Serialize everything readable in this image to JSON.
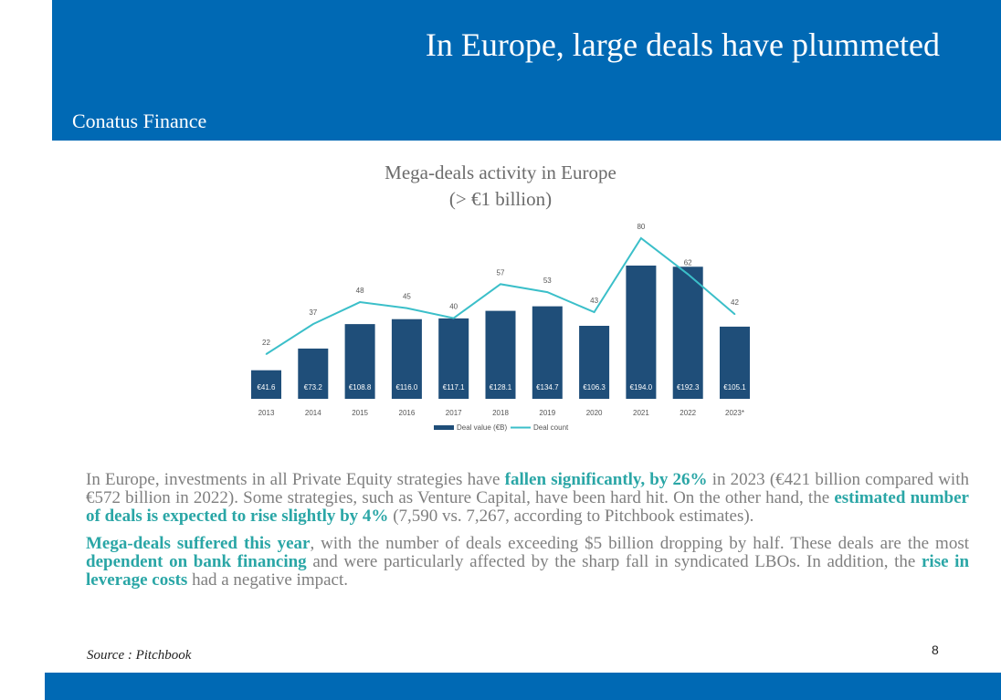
{
  "header": {
    "title": "In Europe, large deals have plummeted",
    "brand": "Conatus Finance"
  },
  "colors": {
    "brand_blue": "#0069b4",
    "bar": "#1f4e79",
    "line": "#3bbfc9",
    "highlight": "#2aa6a6"
  },
  "chart_data": {
    "type": "bar",
    "title": "Mega-deals activity in Europe",
    "subtitle": "(> €1 billion)",
    "categories": [
      "2013",
      "2014",
      "2015",
      "2016",
      "2017",
      "2018",
      "2019",
      "2020",
      "2021",
      "2022",
      "2023*"
    ],
    "series": [
      {
        "name": "Deal value (€B)",
        "type": "bar",
        "values": [
          41.6,
          73.2,
          108.8,
          116.0,
          117.1,
          128.1,
          134.7,
          106.3,
          194.0,
          192.3,
          105.1
        ],
        "labels": [
          "€41.6",
          "€73.2",
          "€108.8",
          "€116.0",
          "€117.1",
          "€128.1",
          "€134.7",
          "€106.3",
          "€194.0",
          "€192.3",
          "€105.1"
        ]
      },
      {
        "name": "Deal count",
        "type": "line",
        "values": [
          22,
          37,
          48,
          45,
          40,
          57,
          53,
          43,
          80,
          62,
          42
        ]
      }
    ],
    "legend": "bottom",
    "grid": false
  },
  "body": {
    "p1": [
      {
        "t": "In Europe, investments in all Private Equity strategies have "
      },
      {
        "t": "fallen significantly, by 26%",
        "hl": true
      },
      {
        "t": " in 2023 (€421 billion compared with €572 billion in 2022). Some strategies, such as Venture Capital, have been hard hit. On the other hand, the "
      },
      {
        "t": "estimated number of deals is expected to rise slightly by 4%",
        "hl": true
      },
      {
        "t": " (7,590 vs. 7,267, according to Pitchbook estimates)."
      }
    ],
    "p2": [
      {
        "t": "Mega-deals suffered this year",
        "hl": true
      },
      {
        "t": ", with the number of deals exceeding $5 billion dropping by half. These deals are the most "
      },
      {
        "t": "dependent on bank financing",
        "hl": true
      },
      {
        "t": " and were particularly affected by the sharp fall in syndicated LBOs. In addition, the "
      },
      {
        "t": "rise in leverage costs",
        "hl": true
      },
      {
        "t": " had a negative impact."
      }
    ]
  },
  "source": "Source : Pitchbook",
  "page_number": "8"
}
